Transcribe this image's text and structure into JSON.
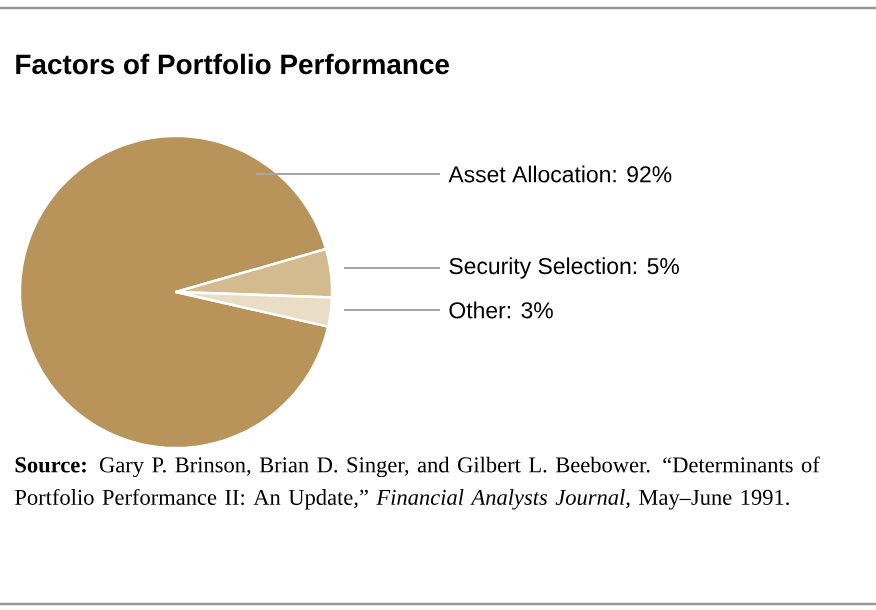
{
  "chart_data": {
    "type": "pie",
    "title": "Factors of Portfolio Performance",
    "categories": [
      "Asset Allocation: 92%",
      "Security Selection: 5%",
      "Other: 3%"
    ],
    "values": [
      92,
      5,
      3
    ],
    "colors": [
      "#b8935a",
      "#d3bb8f",
      "#e9ddc6"
    ],
    "annotations": [
      "**Source:** Gary P. Brinson, Brian D. Singer, and Gilbert L. Beebower. “Determinants of Portfolio Performance II: An Update,” *Financial Analysts Journal*, May–June 1991."
    ]
  }
}
